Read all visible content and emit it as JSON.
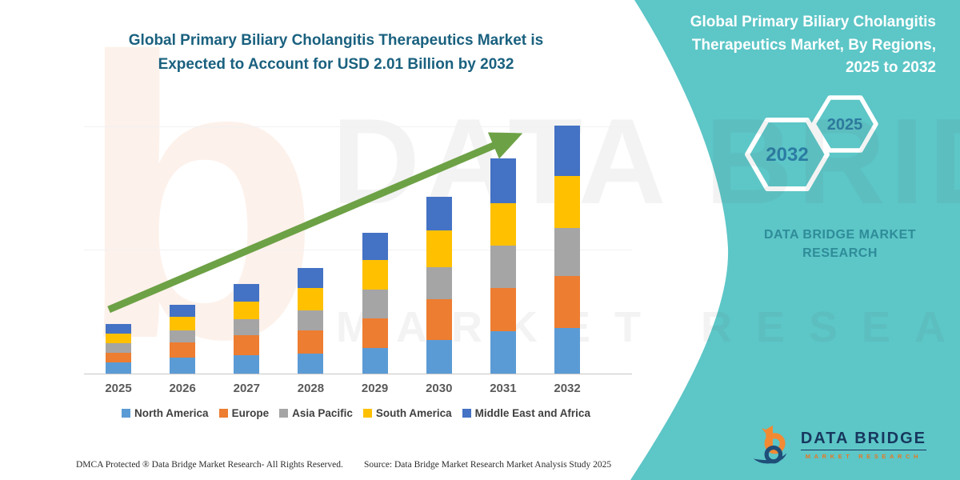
{
  "main_title": {
    "lines": [
      "Global Primary Biliary Cholangitis Therapeutics Market is",
      "Expected to Account for USD 2.01 Billion by 2032"
    ]
  },
  "side_panel": {
    "title_lines": [
      "Global Primary Biliary Cholangitis",
      "Therapeutics Market, By Regions,",
      "2025 to 2032"
    ],
    "hex_large_year": "2032",
    "hex_small_year": "2025",
    "brand_lines": [
      "DATA BRIDGE MARKET",
      "RESEARCH"
    ]
  },
  "chart_data": {
    "type": "bar",
    "subtype": "stacked-vertical",
    "title": "Global Primary Biliary Cholangitis Therapeutics Market is Expected to Account for USD 2.01 Billion by 2032",
    "unit": "USD billion (estimated from bar heights; no y-axis shown)",
    "categories": [
      "2025",
      "2026",
      "2027",
      "2028",
      "2029",
      "2030",
      "2031",
      "2032"
    ],
    "series": [
      {
        "name": "North America",
        "color": "#5B9BD5",
        "values": [
          0.09,
          0.13,
          0.15,
          0.16,
          0.21,
          0.27,
          0.34,
          0.37
        ]
      },
      {
        "name": "Europe",
        "color": "#ED7D31",
        "values": [
          0.08,
          0.12,
          0.16,
          0.19,
          0.24,
          0.33,
          0.35,
          0.42
        ]
      },
      {
        "name": "Asia Pacific",
        "color": "#A5A5A5",
        "values": [
          0.08,
          0.1,
          0.13,
          0.16,
          0.23,
          0.26,
          0.34,
          0.39
        ]
      },
      {
        "name": "South America",
        "color": "#FFC000",
        "values": [
          0.08,
          0.11,
          0.14,
          0.18,
          0.24,
          0.3,
          0.34,
          0.42
        ]
      },
      {
        "name": "Middle East and Africa",
        "color": "#4472C4",
        "values": [
          0.08,
          0.1,
          0.14,
          0.16,
          0.22,
          0.27,
          0.36,
          0.41
        ]
      }
    ],
    "totals": [
      0.41,
      0.56,
      0.72,
      0.85,
      1.14,
      1.43,
      1.73,
      2.01
    ],
    "ylim": [
      0,
      2.15
    ],
    "grid": "faint horizontal lines",
    "legend_position": "bottom",
    "annotation": "green upward trend arrow across bars"
  },
  "footer": {
    "left": "DMCA Protected ® Data Bridge Market Research-  All Rights Reserved.",
    "source": "Source: Data Bridge Market Research  Market Analysis Study 2025"
  },
  "logo": {
    "title": "DATA BRIDGE",
    "subtitle": "MARKET RESEARCH"
  },
  "watermarks": {
    "letter": "b",
    "line1": "DATA BRIDGE",
    "line2": "MARKET RESEARCH"
  },
  "colors": {
    "panel_teal": "#5dc6c7",
    "main_title_text": "#1a617f",
    "arrow_green": "#6da145",
    "axis_label_text": "#595959",
    "hex_year_text": "#2b7ca3",
    "panel_brand_text": "#2f8c99",
    "logo_navy": "#17375e",
    "logo_orange": "#e87722"
  }
}
